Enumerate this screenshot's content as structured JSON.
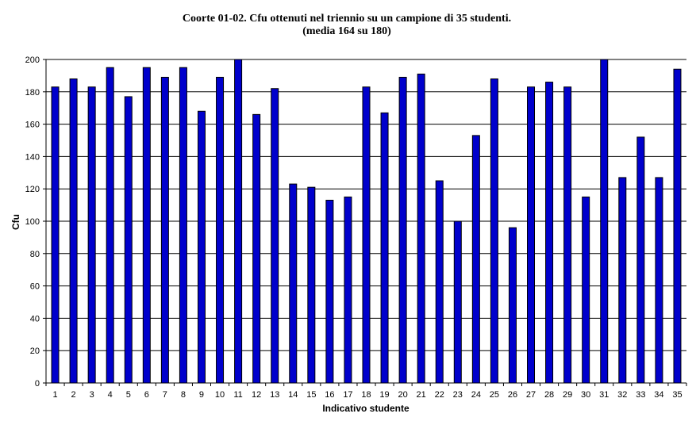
{
  "chart_data": {
    "type": "bar",
    "title": "Coorte 01-02. Cfu ottenuti nel triennio su un campione di 35 studenti.",
    "subtitle": "(media 164 su 180)",
    "xlabel": "Indicativo studente",
    "ylabel": "Cfu",
    "ylim": [
      0,
      200
    ],
    "yticks": [
      0,
      20,
      40,
      60,
      80,
      100,
      120,
      140,
      160,
      180,
      200
    ],
    "grid": true,
    "legend": "none",
    "categories": [
      "1",
      "2",
      "3",
      "4",
      "5",
      "6",
      "7",
      "8",
      "9",
      "10",
      "11",
      "12",
      "13",
      "14",
      "15",
      "16",
      "17",
      "18",
      "19",
      "20",
      "21",
      "22",
      "23",
      "24",
      "25",
      "26",
      "27",
      "28",
      "29",
      "30",
      "31",
      "32",
      "33",
      "34",
      "35"
    ],
    "series": [
      {
        "values": [
          183,
          188,
          183,
          195,
          177,
          195,
          189,
          195,
          168,
          189,
          200,
          166,
          182,
          123,
          121,
          113,
          115,
          183,
          167,
          189,
          191,
          125,
          100,
          153,
          188,
          96,
          183,
          186,
          183,
          115,
          200,
          127,
          152,
          127,
          194
        ],
        "color": "#0000CC"
      }
    ]
  }
}
